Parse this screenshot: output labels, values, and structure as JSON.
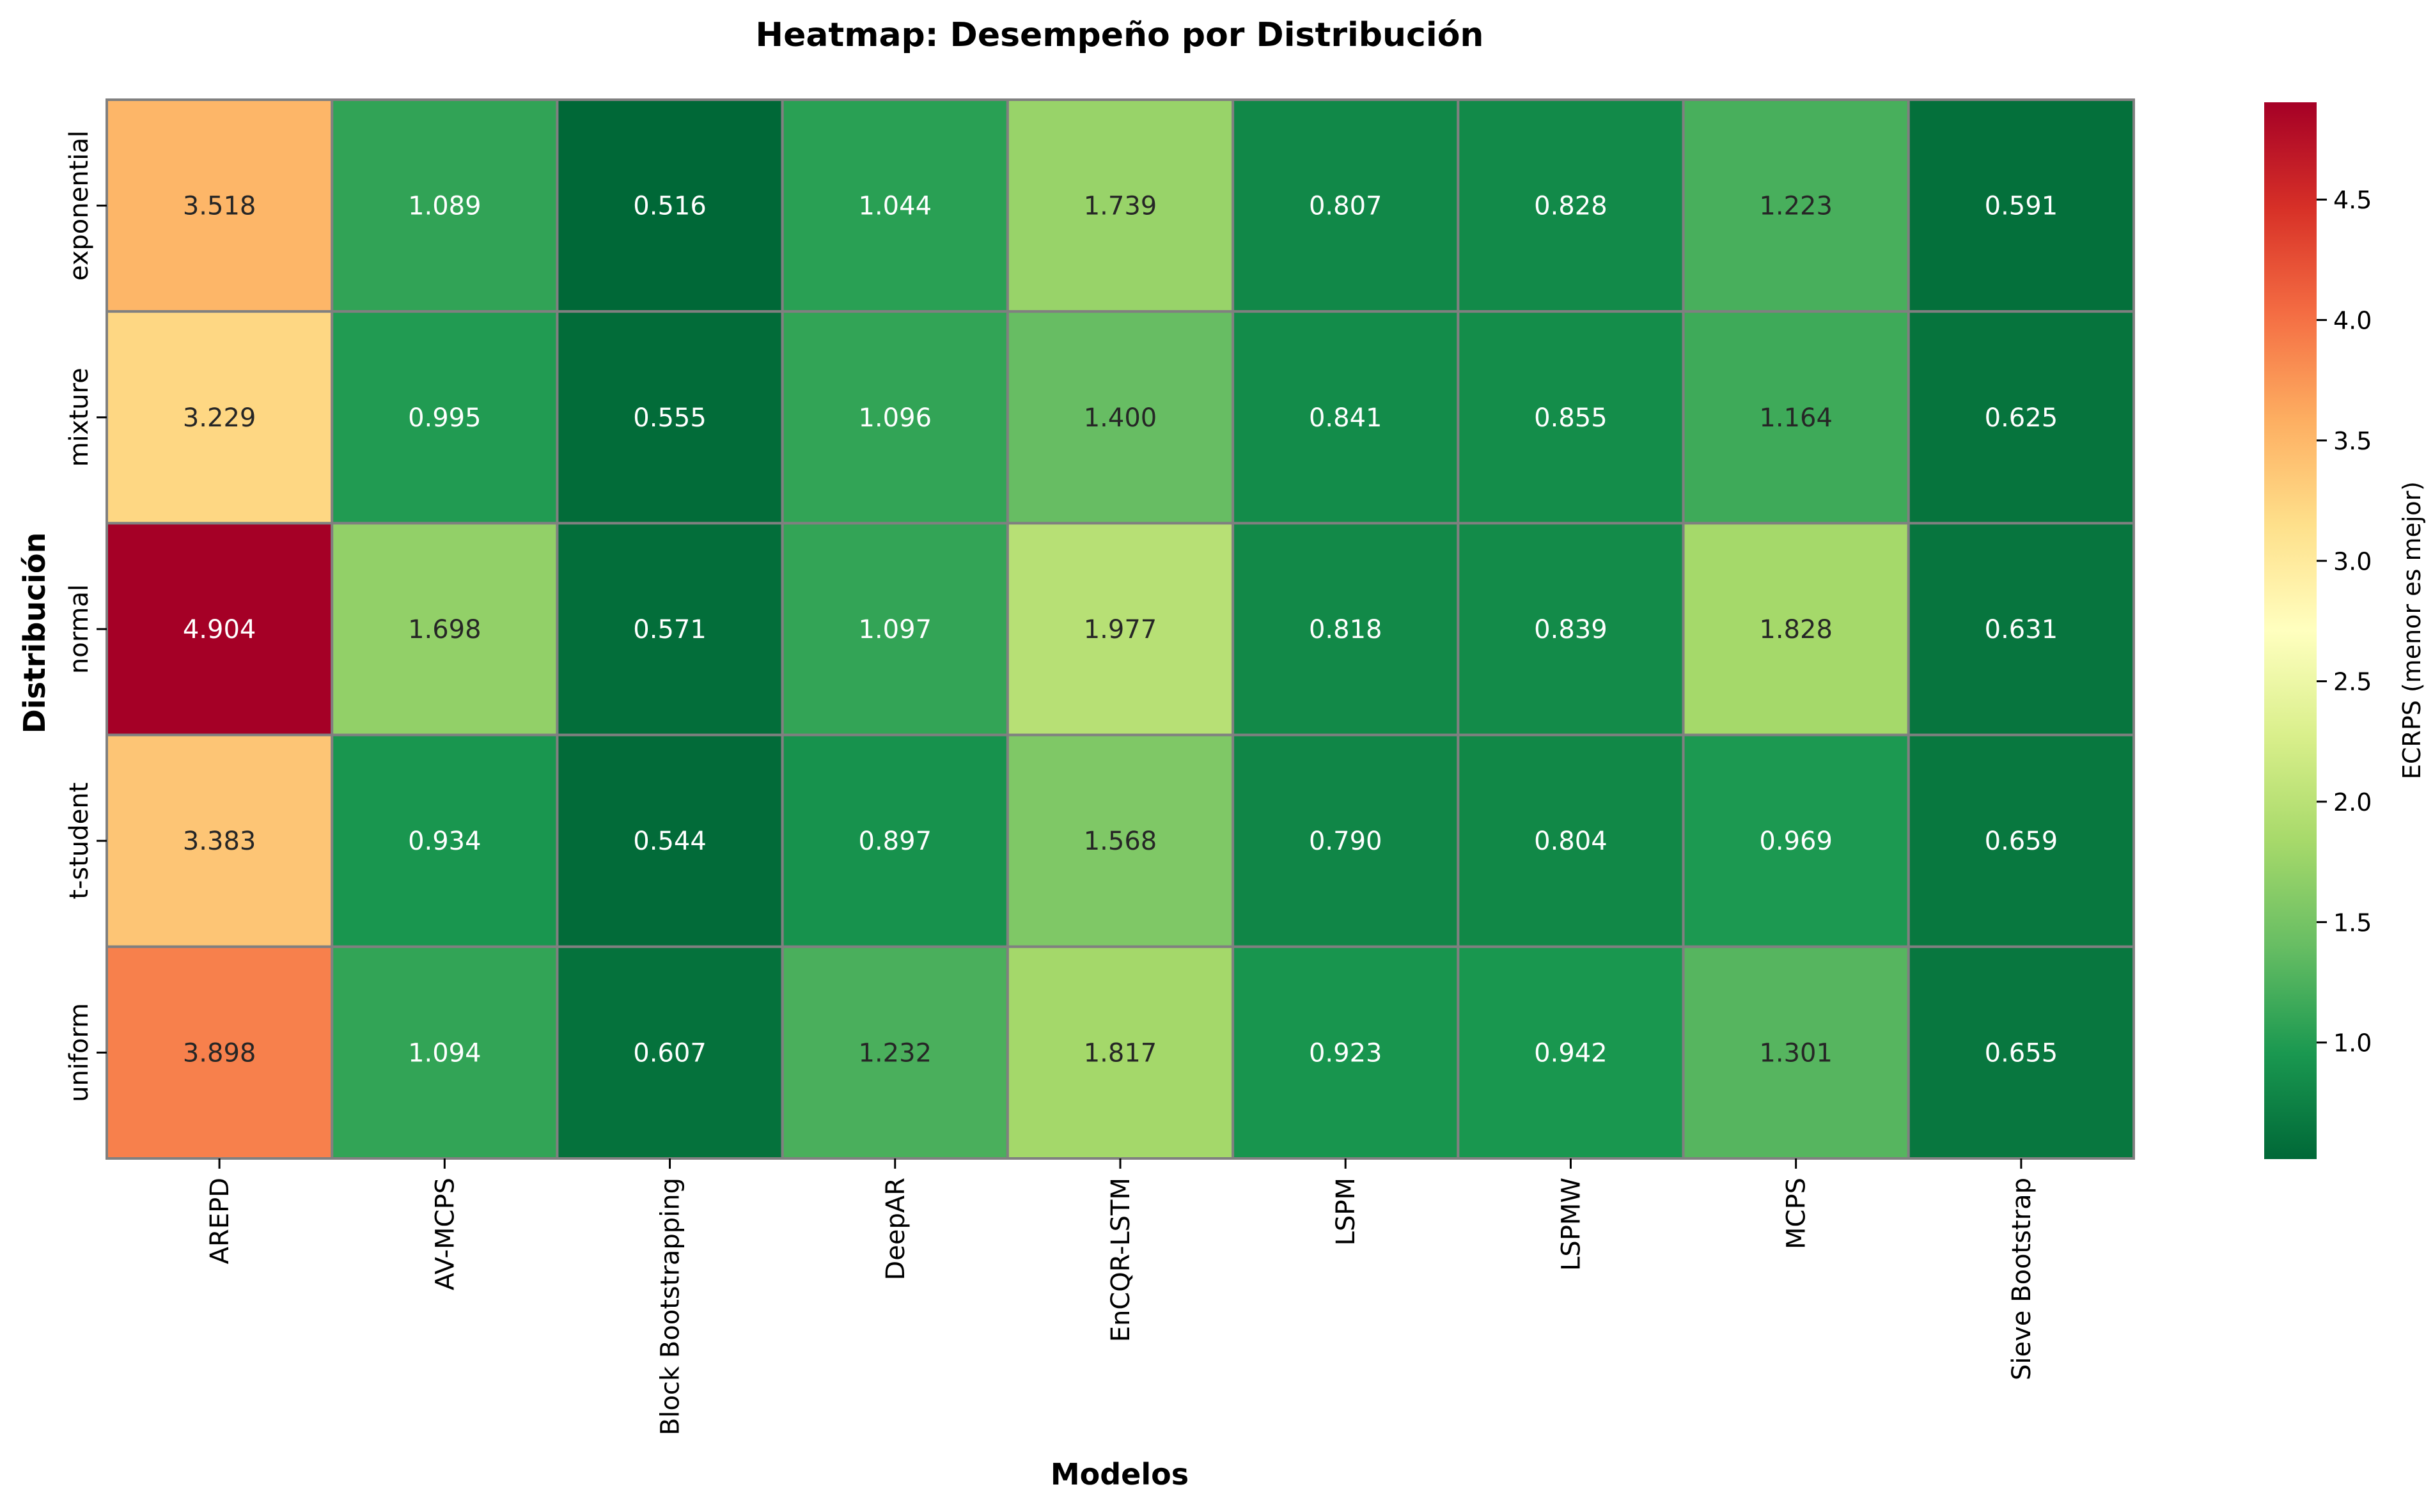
{
  "chart_data": {
    "type": "heatmap",
    "title": "Heatmap: Desempeño por Distribución",
    "xlabel": "Modelos",
    "ylabel": "Distribución",
    "x_categories": [
      "AREPD",
      "AV-MCPS",
      "Block Bootstrapping",
      "DeepAR",
      "EnCQR-LSTM",
      "LSPM",
      "LSPMW",
      "MCPS",
      "Sieve Bootstrap"
    ],
    "y_categories": [
      "exponential",
      "mixture",
      "normal",
      "t-student",
      "uniform"
    ],
    "values": [
      [
        3.518,
        1.089,
        0.516,
        1.044,
        1.739,
        0.807,
        0.828,
        1.223,
        0.591
      ],
      [
        3.229,
        0.995,
        0.555,
        1.096,
        1.4,
        0.841,
        0.855,
        1.164,
        0.625
      ],
      [
        4.904,
        1.698,
        0.571,
        1.097,
        1.977,
        0.818,
        0.839,
        1.828,
        0.631
      ],
      [
        3.383,
        0.934,
        0.544,
        0.897,
        1.568,
        0.79,
        0.804,
        0.969,
        0.659
      ],
      [
        3.898,
        1.094,
        0.607,
        1.232,
        1.817,
        0.923,
        0.942,
        1.301,
        0.655
      ]
    ],
    "value_labels": [
      [
        "3.518",
        "1.089",
        "0.516",
        "1.044",
        "1.739",
        "0.807",
        "0.828",
        "1.223",
        "0.591"
      ],
      [
        "3.229",
        "0.995",
        "0.555",
        "1.096",
        "1.400",
        "0.841",
        "0.855",
        "1.164",
        "0.625"
      ],
      [
        "4.904",
        "1.698",
        "0.571",
        "1.097",
        "1.977",
        "0.818",
        "0.839",
        "1.828",
        "0.631"
      ],
      [
        "3.383",
        "0.934",
        "0.544",
        "0.897",
        "1.568",
        "0.790",
        "0.804",
        "0.969",
        "0.659"
      ],
      [
        "3.898",
        "1.094",
        "0.607",
        "1.232",
        "1.817",
        "0.923",
        "0.942",
        "1.301",
        "0.655"
      ]
    ],
    "colormap": "RdYlGn_r",
    "color_range": [
      0.516,
      4.904
    ],
    "colorbar": {
      "label": "ECRPS (menor es mejor)",
      "ticks": [
        1.0,
        1.5,
        2.0,
        2.5,
        3.0,
        3.5,
        4.0,
        4.5
      ],
      "tick_labels": [
        "1.0",
        "1.5",
        "2.0",
        "2.5",
        "3.0",
        "3.5",
        "4.0",
        "4.5"
      ]
    },
    "cell_border_color": "#808080"
  }
}
